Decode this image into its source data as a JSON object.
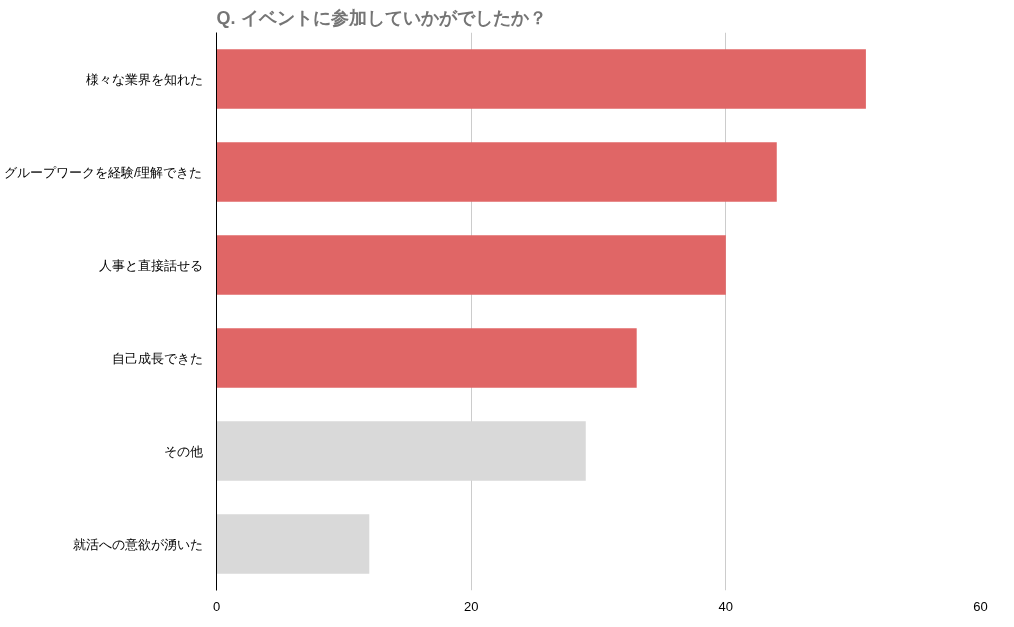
{
  "chart_data": {
    "type": "bar",
    "orientation": "horizontal",
    "title": "Q. イベントに参加していかがでしたか？",
    "categories": [
      "様々な業界を知れた",
      "グループワークを経験/理解できた",
      "人事と直接話せる",
      "自己成長できた",
      "その他",
      "就活への意欲が湧いた"
    ],
    "values": [
      51,
      44,
      40,
      33,
      29,
      12
    ],
    "colors": [
      "#e06666",
      "#e06666",
      "#e06666",
      "#e06666",
      "#d9d9d9",
      "#d9d9d9"
    ],
    "xlim": [
      0,
      60
    ],
    "xticks": [
      0,
      20,
      40,
      60
    ],
    "grid": "x"
  }
}
